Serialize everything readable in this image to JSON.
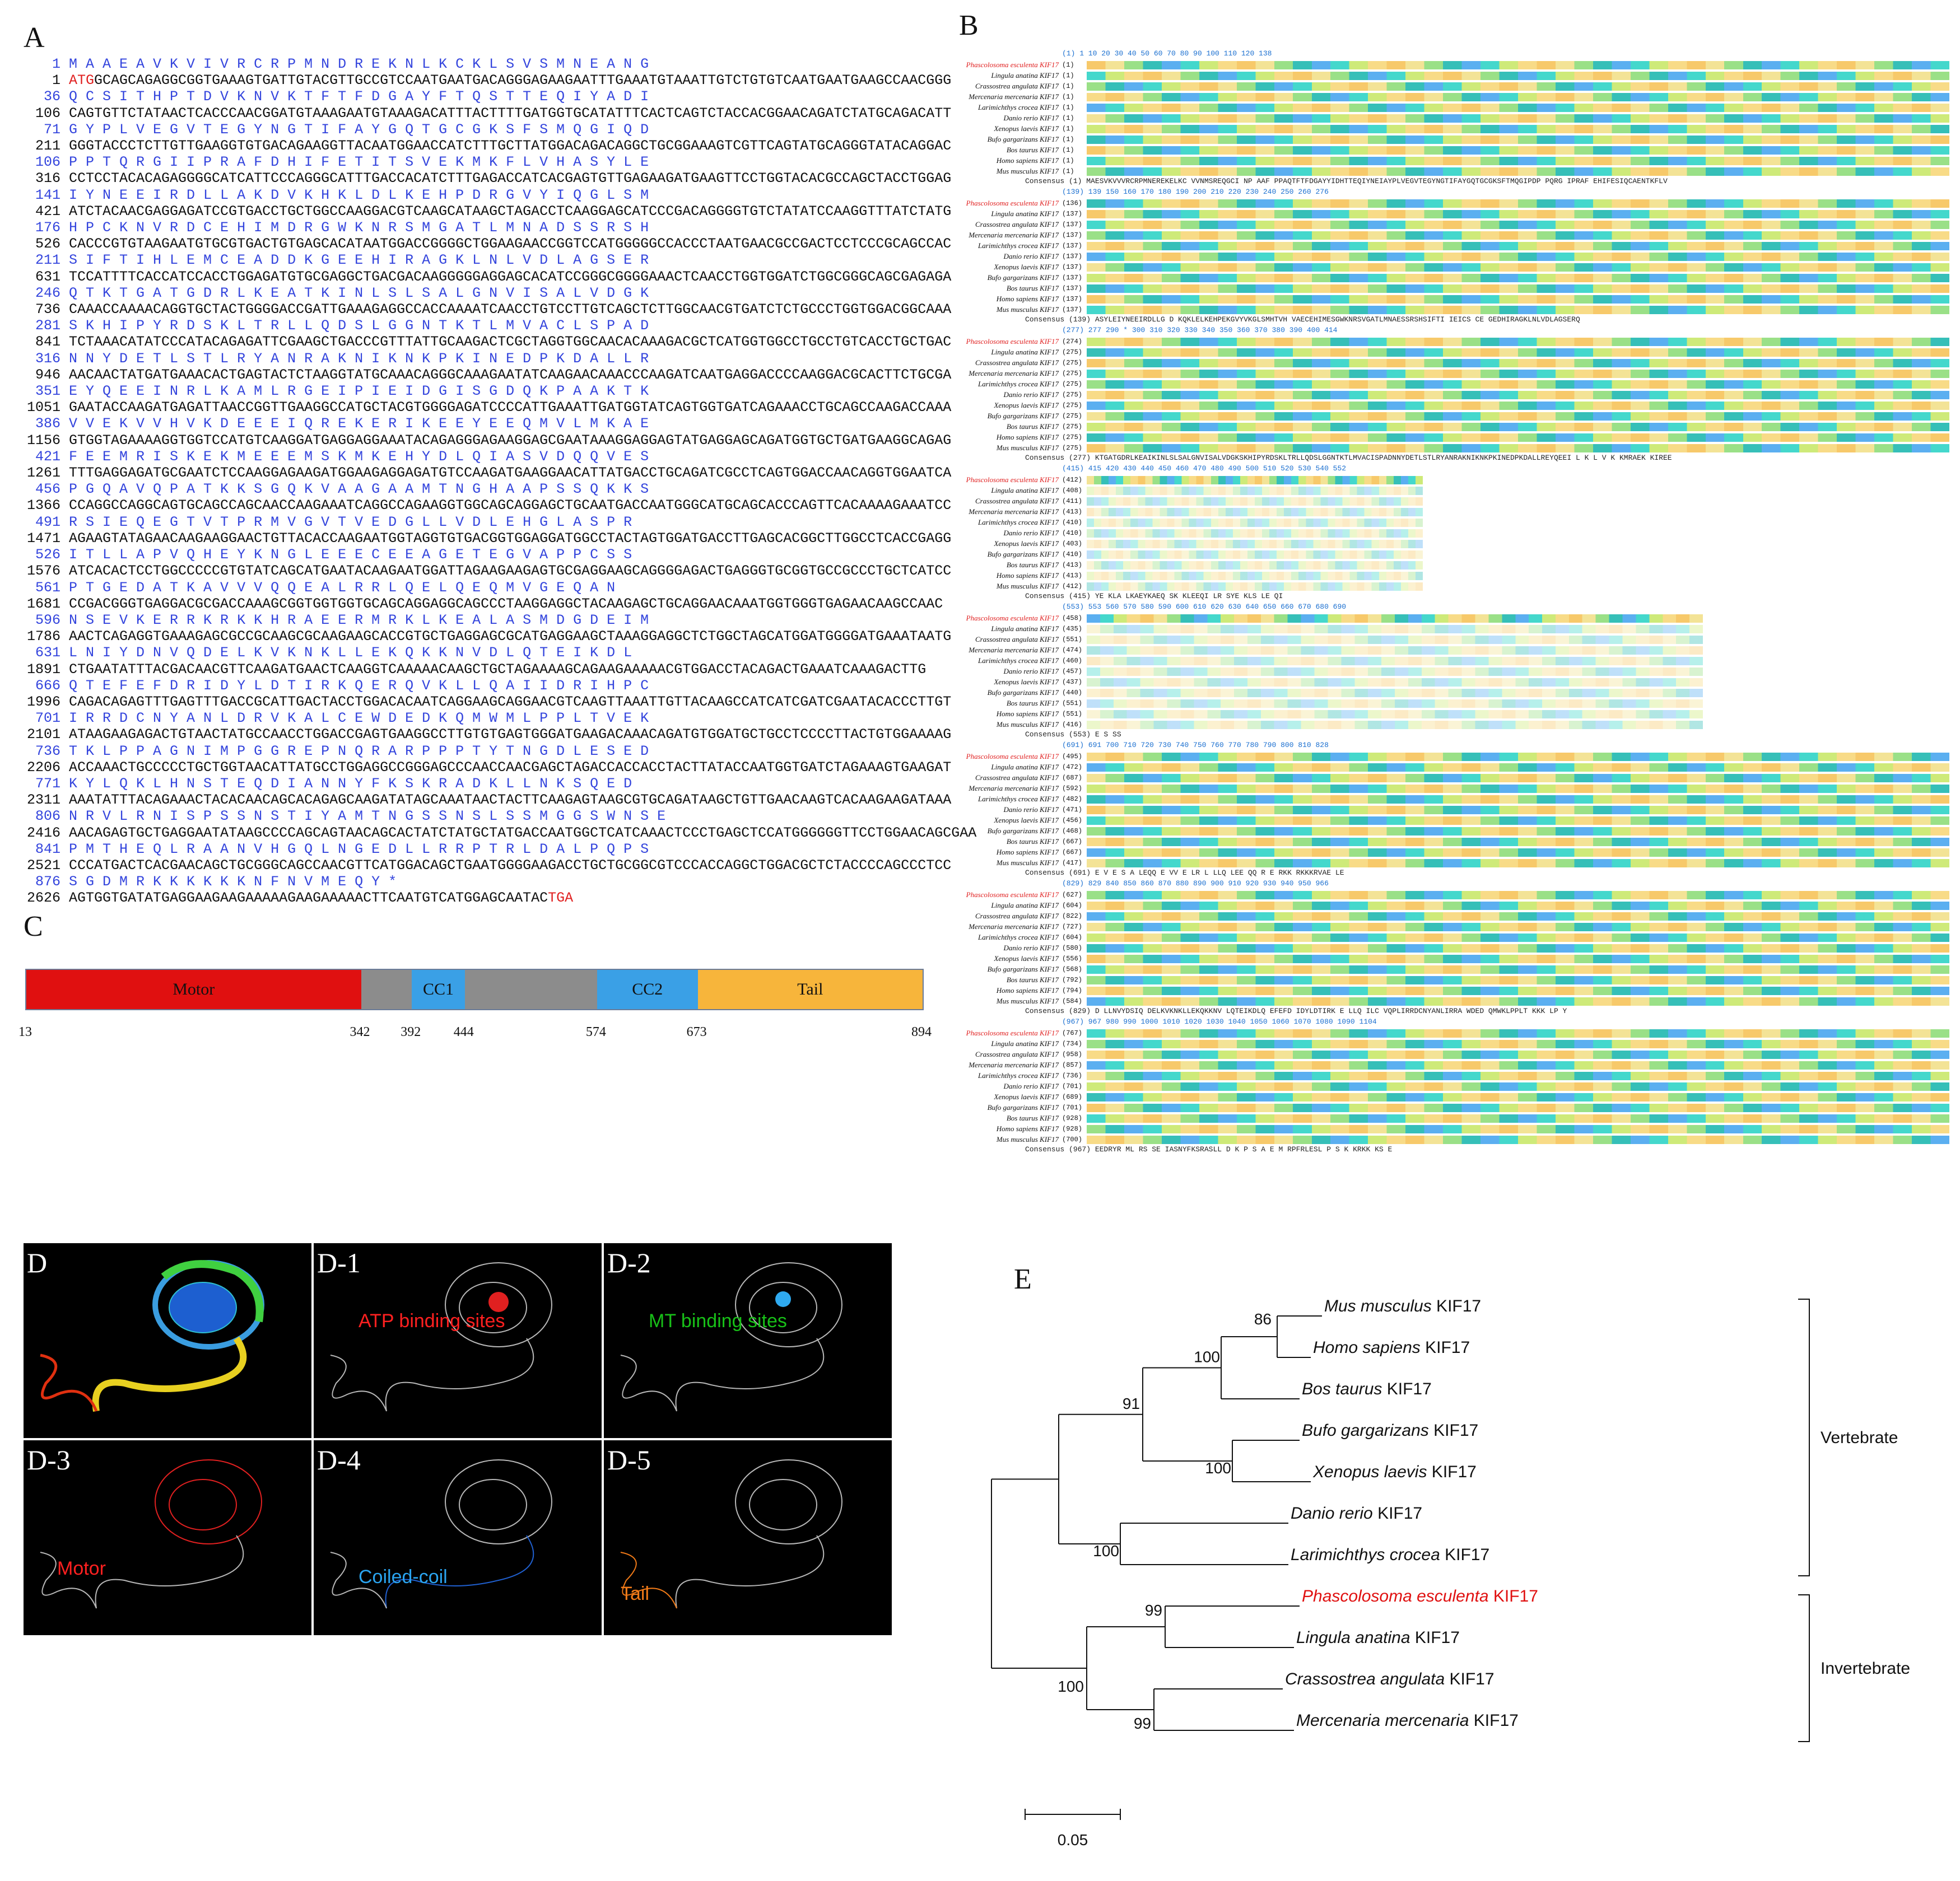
{
  "panels": {
    "A": "A",
    "B": "B",
    "C": "C",
    "D": "D",
    "E": "E"
  },
  "panel_a": {
    "rows": [
      {
        "idx": "1",
        "aa": "M A A E A V K V I V R C R P M N D R E K N L K C K L S V S M N E A N G",
        "kind": "aa"
      },
      {
        "idx": "1",
        "lead": "ATG",
        "nt": "GCAGCAGAGGCGGTGAAAGTGATTGTACGTTGCCGTCCAATGAATGACAGGGAGAAGAATTTGAAATGTAAATTGTCTGTGTCAATGAATGAAGCCAACGGG",
        "kind": "nt"
      },
      {
        "idx": "36",
        "aa": "Q C S I T H P T D V K N V K T F T F D G A Y F T Q S T T E Q I Y A D I",
        "kind": "aa"
      },
      {
        "idx": "106",
        "nt": "CAGTGTTCTATAACTCACCCAACGGATGTAAAGAATGTAAAGACATTTACTTTTGATGGTGCATATTTCACTCAGTCTACCACGGAACAGATCTATGCAGACATT",
        "kind": "nt"
      },
      {
        "idx": "71",
        "aa": "G Y P L V E G V T E G Y N G T I F A Y G Q T G C G K S F S M Q G I Q D",
        "kind": "aa"
      },
      {
        "idx": "211",
        "nt": "GGGTACCCTCTTGTTGAAGGTGTGACAGAAGGTTACAATGGAACCATCTTTGCTTATGGACAGACAGGCTGCGGAAAGTCGTTCAGTATGCAGGGTATACAGGAC",
        "kind": "nt"
      },
      {
        "idx": "106",
        "aa": "P P T Q R G I I P R A F D H I F E T I T S V E K M K F L V H A S Y L E",
        "kind": "aa"
      },
      {
        "idx": "316",
        "nt": "CCTCCTACACAGAGGGGCATCATTCCCAGGGCATTTGACCACATCTTTGAGACCATCACGAGTGTTGAGAAGATGAAGTTCCTGGTACACGCCAGCTACCTGGAG",
        "kind": "nt"
      },
      {
        "idx": "141",
        "aa": "I Y N E E I R D L L A K D V K H K L D L K E H P D R G V Y I Q G L S M",
        "kind": "aa"
      },
      {
        "idx": "421",
        "nt": "ATCTACAACGAGGAGATCCGTGACCTGCTGGCCAAGGACGTCAAGCATAAGCTAGACCTCAAGGAGCATCCCGACAGGGGTGTCTATATCCAAGGTTTATCTATG",
        "kind": "nt"
      },
      {
        "idx": "176",
        "aa": "H P C K N V R D C E H I M D R G W K N R S M G A T L M N A D S S R S H",
        "kind": "aa"
      },
      {
        "idx": "526",
        "nt": "CACCCGTGTAAGAATGTGCGTGACTGTGAGCACATAATGGACCGGGGCTGGAAGAACCGGTCCATGGGGGCCACCCTAATGAACGCCGACTCCTCCCGCAGCCAC",
        "kind": "nt"
      },
      {
        "idx": "211",
        "aa": "S I F T I H L E M C E A D D K G E E H I R A G K L N L V D L A G S E R",
        "kind": "aa"
      },
      {
        "idx": "631",
        "nt": "TCCATTTTCACCATCCACCTGGAGATGTGCGAGGCTGACGACAAGGGGGAGGAGCACATCCGGGCGGGGAAACTCAACCTGGTGGATCTGGCGGGCAGCGAGAGA",
        "kind": "nt"
      },
      {
        "idx": "246",
        "aa": "Q T K T G A T G D R L K E A T K I N L S L S A L G N V I S A L V D G K",
        "kind": "aa"
      },
      {
        "idx": "736",
        "nt": "CAAACCAAAACAGGTGCTACTGGGGACCGATTGAAAGAGGCCACCAAAATCAACCTGTCCTTGTCAGCTCTTGGCAACGTGATCTCTGCCCTGGTGGACGGCAAA",
        "kind": "nt"
      },
      {
        "idx": "281",
        "aa": "S K H I P Y R D S K L T R L L Q D S L G G N T K T L M V A C L S P A D",
        "kind": "aa"
      },
      {
        "idx": "841",
        "nt": "TCTAAACATATCCCATACAGAGATTCGAAGCTGACCCGTTTATTGCAAGACTCGCTAGGTGGCAACACAAAGACGCTCATGGTGGCCTGCCTGTCACCTGCTGAC",
        "kind": "nt"
      },
      {
        "idx": "316",
        "aa": "N N Y D E T L S T L R Y A N R A K N I K N K P K I N E D P K D A L L R",
        "kind": "aa"
      },
      {
        "idx": "946",
        "nt": "AACAACTATGATGAAACACTGAGTACTCTAAGGTATGCAAACAGGGCAAAGAATATCAAGAACAAACCCAAGATCAATGAGGACCCCAAGGACGCACTTCTGCGA",
        "kind": "nt"
      },
      {
        "idx": "351",
        "aa": "E Y Q E E I N R L K A M L R G E I P I E I D G I S G D Q K P A A K T K",
        "kind": "aa"
      },
      {
        "idx": "1051",
        "nt": "GAATACCAAGATGAGATTAACCGGTTGAAGGCCATGCTACGTGGGGAGATCCCCATTGAAATTGATGGTATCAGTGGTGATCAGAAACCTGCAGCCAAGACCAAA",
        "kind": "nt"
      },
      {
        "idx": "386",
        "aa": "V V E K V V H V K D E E E I Q R E K E R I K E E Y E E Q M V L M K A E",
        "kind": "aa"
      },
      {
        "idx": "1156",
        "nt": "GTGGTAGAAAAGGTGGTCCATGTCAAGGATGAGGAGGAAATACAGAGGGAGAAGGAGCGAATAAAGGAGGAGTATGAGGAGCAGATGGTGCTGATGAAGGCAGAG",
        "kind": "nt"
      },
      {
        "idx": "421",
        "aa": "F E E M R I S K E K M E E E M S K M K E H Y D L Q I A S V D Q Q V E S",
        "kind": "aa"
      },
      {
        "idx": "1261",
        "nt": "TTTGAGGAGATGCGAATCTCCAAGGAGAAGATGGAAGAGGAGATGTCCAAGATGAAGGAACATTATGACCTGCAGATCGCCTCAGTGGACCAACAGGTGGAATCA",
        "kind": "nt"
      },
      {
        "idx": "456",
        "aa": "P G Q A V Q P A T K K S G Q K V A A G A A M T N G H A A P S S Q K K S",
        "kind": "aa"
      },
      {
        "idx": "1366",
        "nt": "CCAGGCCAGGCAGTGCAGCCAGCAACCAAGAAATCAGGCCAGAAGGTGGCAGCAGGAGCTGCAATGACCAATGGGCATGCAGCACCCAGTTCACAAAAGAAATCC",
        "kind": "nt"
      },
      {
        "idx": "491",
        "aa": "R S I E Q E G T V T P R M V G V T V E D G L L V D L E H G L A S P R",
        "kind": "aa"
      },
      {
        "idx": "1471",
        "nt": "AGAAGTATAGAACAAGAAGGAACTGTTACACCAAGAATGGTAGGTGTGACGGTGGAGGATGGCCTACTAGTGGATGACCTTGAGCACGGCTTGGCCTCACCGAGG",
        "kind": "nt"
      },
      {
        "idx": "526",
        "aa": "I T L L A P V Q H E Y K N G L E E E C E E A G E T E G V A P P C S S",
        "kind": "aa"
      },
      {
        "idx": "1576",
        "nt": "ATCACACTCCTGGCCCCCGTGTATCAGCATGAATACAAGAATGGATTAGAAGAAGAGTGCGAGGAAGCAGGGGAGACTGAGGGTGCGGTGCCGCCCTGCTCATCC",
        "kind": "nt"
      },
      {
        "idx": "561",
        "aa": "P T G E D A T K A V V V Q Q E A L R R L Q E L Q E Q M V G E Q A N",
        "kind": "aa"
      },
      {
        "idx": "1681",
        "nt": "CCGACGGGTGAGGACGCGACCAAAGCGGTGGTGGTGCAGCAGGAGGCAGCCCTAAGGAGGCTACAAGAGCTGCAGGAACAAATGGTGGGTGAGAACAAGCCAAC",
        "kind": "nt"
      },
      {
        "idx": "596",
        "aa": "N S E V K E R R K R K K H R A E E R M R K L K E A L A S M D G D E I M",
        "kind": "aa"
      },
      {
        "idx": "1786",
        "nt": "AACTCAGAGGTGAAAGAGCGCCGCAAGCGCAAGAAGCACCGTGCTGAGGAGCGCATGAGGAAGCTAAAGGAGGCTCTGGCTAGCATGGATGGGGATGAAATAATG",
        "kind": "nt"
      },
      {
        "idx": "631",
        "aa": "L N I Y D N V Q D E L K V K N K L L E K Q K K N V D L Q T E I K D L",
        "kind": "aa"
      },
      {
        "idx": "1891",
        "nt": "CTGAATATTTACGACAACGTTCAAGATGAACTCAAGGTCAAAAACAAGCTGCTAGAAAAGCAGAAGAAAAACGTGGACCTACAGACTGAAATCAAAGACTTG",
        "kind": "nt"
      },
      {
        "idx": "666",
        "aa": "Q T E F E F D R I D Y L D T I R K Q E R Q V K L L Q A I I D R I H P C",
        "kind": "aa"
      },
      {
        "idx": "1996",
        "nt": "CAGACAGAGTTTGAGTTTGACCGCATTGACTACCTGGACACAATCAGGAAGCAGGAACGTCAAGTTAAATTGTTACAAGCCATCATCGATCGAATACACCCTTGT",
        "kind": "nt"
      },
      {
        "idx": "701",
        "aa": "I R R D C N Y A N L D R V K A L C E W D E D K Q M W M L P P L T V E K",
        "kind": "aa"
      },
      {
        "idx": "2101",
        "nt": "ATAAGAAGAGACTGTAACTATGCCAACCTGGACCGAGTGAAGGCCTTGTGTGAGTGGGATGAAGACAAACAGATGTGGATGCTGCCTCCCCTTACTGTGGAAAAG",
        "kind": "nt"
      },
      {
        "idx": "736",
        "aa": "T K L P P A G N I M P G G R E P N Q R A R P P P T Y T N G D L E S E D",
        "kind": "aa"
      },
      {
        "idx": "2206",
        "nt": "ACCAAACTGCCCCCTGCTGGTAACATTATGCCTGGAGGCCGGGAGCCCAACCAACGAGCTAGACCACCACCTACTTATACCAATGGTGATCTAGAAAGTGAAGAT",
        "kind": "nt"
      },
      {
        "idx": "771",
        "aa": "K Y L Q K L H N S T E Q D I A N N Y F K S K R A D K L L N K S Q E D",
        "kind": "aa"
      },
      {
        "idx": "2311",
        "nt": "AAATATTTACAGAAACTACACAACAGCACAGAGCAAGATATAGCAAATAACTACTTCAAGAGTAAGCGTGCAGATAAGCTGTTGAACAAGTCACAAGAAGATAAA",
        "kind": "nt"
      },
      {
        "idx": "806",
        "aa": "N R V L R N I S P S S N S T I Y A M T N G S S N S L S S M G G S W N S E",
        "kind": "aa"
      },
      {
        "idx": "2416",
        "nt": "AACAGAGTGCTGAGGAATATAAGCCCCAGCAGTAACAGCACTATCTATGCTATGACCAATGGCTCATCAAACTCCCTGAGCTCCATGGGGGGTTCCTGGAACAGCGAA",
        "kind": "nt"
      },
      {
        "idx": "841",
        "aa": "P M T H E Q L R A A N V H G Q L N G E D L L R R P T R L D A L P Q P S",
        "kind": "aa"
      },
      {
        "idx": "2521",
        "nt": "CCCATGACTCACGAACAGCTGCGGGCAGCCAACGTTCATGGACAGCTGAATGGGGAAGACCTGCTGCGGCGTCCCACCAGGCTGGACGCTCTACCCCAGCCCTCC",
        "kind": "nt"
      },
      {
        "idx": "876",
        "aa": "S G D M R K K K K K K N F N V M E Q Y *",
        "kind": "aa"
      },
      {
        "idx": "2626",
        "nt": "AGTGGTGATATGAGGAAGAAGAAAAAGAAGAAAAACTTCAATGTCATGGAGCAATAC",
        "tail": "TGA",
        "kind": "nt"
      }
    ]
  },
  "panel_b": {
    "species": [
      "Phascolosoma esculenta KIF17",
      "Lingula anatina KIF17",
      "Crassostrea angulata KIF17",
      "Mercenaria mercenaria KIF17",
      "Larimichthys crocea KIF17",
      "Danio rerio KIF17",
      "Xenopus laevis KIF17",
      "Bufo gargarizans KIF17",
      "Bos taurus KIF17",
      "Homo sapiens KIF17",
      "Mus musculus KIF17"
    ],
    "consensus_label": "Consensus",
    "blocks": [
      {
        "pos": "(1)  1      10      20      30      40      50      60      70      80      90     100     110     120     138",
        "starts": [
          "(1)",
          "(1)",
          "(1)",
          "(1)",
          "(1)",
          "(1)",
          "(1)",
          "(1)",
          "(1)",
          "(1)",
          "(1)"
        ],
        "cons": "(1)  MAESVKVVVRCRPMNEREKELKC VVNMSREQGCI NP AAF PPAQTFTFDGAYYIDHTTEQIYNEIAYPLVEGVTEGYNGTIFAYGQTGCGKSFTMQGIPDP PQRG IPRAF EHIFESIQCAENTKFLV"
      },
      {
        "pos": "(139)  139    150     160     170     180     190     200     210     220     230     240     250     260     276",
        "starts": [
          "(136)",
          "(137)",
          "(137)",
          "(137)",
          "(137)",
          "(137)",
          "(137)",
          "(137)",
          "(137)",
          "(137)",
          "(137)"
        ],
        "cons": "(139) ASYLEIYNEEIRDLLG D KQKLELKEHPEKGVYVKGLSMHTVH VAECEHIMESGWKNRSVGATLMNAESSRSHSIFTI IEICS CE GEDHIRAGKLNLVDLAGSERQ"
      },
      {
        "pos": "(277)  277  290 *  300     310     320     330     340     350     360     370     380     390     400     414",
        "starts": [
          "(274)",
          "(275)",
          "(275)",
          "(275)",
          "(275)",
          "(275)",
          "(275)",
          "(275)",
          "(275)",
          "(275)",
          "(275)"
        ],
        "cons": "(277) KTGATGDRLKEAIKINLSLSALGNVISALVDGKSKHIPYRDSKLTRLLQDSLGGNTKTLMVACISPADNNYDETLSTLRYANRAKNIKNKPKINEDPKDALLREYQEEI L K L   V  K  KMRAEK KIREE"
      },
      {
        "pos": "(415)  415  420     430     440     450     460     470     480     490     500     510     520     530     540     552",
        "starts": [
          "(412)",
          "(408)",
          "(411)",
          "(413)",
          "(410)",
          "(410)",
          "(403)",
          "(410)",
          "(413)",
          "(413)",
          "(412)"
        ],
        "cons": "(415) YE KLA LKAEYKAEQ SK KLEEQI LR SYE KLS LE QI"
      },
      {
        "pos": "(553)  553  560     570     580     590     600     610     620     630     640     650     660     670     680     690",
        "starts": [
          "(458)",
          "(435)",
          "(551)",
          "(474)",
          "(460)",
          "(457)",
          "(437)",
          "(440)",
          "(551)",
          "(551)",
          "(416)"
        ],
        "cons": "(553)                                                                                     E   S      SS"
      },
      {
        "pos": "(691)  691  700     710     720     730     740     750     760     770     780     790     800     810     828",
        "starts": [
          "(495)",
          "(472)",
          "(687)",
          "(592)",
          "(482)",
          "(471)",
          "(456)",
          "(468)",
          "(667)",
          "(667)",
          "(417)"
        ],
        "cons": "(691) E       V  E  S    A                      LEQQ E  VV  E  LR L  LLQ  LEE  QQ  R  E    RKK RKKKRVAE   LE"
      },
      {
        "pos": "(829)  829  840     850     860     870     880     890     900     910     920     930     940     950     966",
        "starts": [
          "(627)",
          "(604)",
          "(822)",
          "(727)",
          "(604)",
          "(580)",
          "(556)",
          "(568)",
          "(792)",
          "(794)",
          "(584)"
        ],
        "cons": "(829) D LLNVYDSIQ DELKVKNKLLEKQKKNV LQTEIKDLQ EFEFD IDYLDTIRK E LLQ ILC VQPLIRRDCNYANLIRRA WDED QMWKLPPLT KKK LP Y"
      },
      {
        "pos": "(967)  967  980     990     1000    1010    1020    1030    1040    1050    1060    1070    1080    1090    1104",
        "starts": [
          "(767)",
          "(734)",
          "(958)",
          "(857)",
          "(736)",
          "(701)",
          "(689)",
          "(701)",
          "(928)",
          "(928)",
          "(700)"
        ],
        "cons": "(967) EEDRYR ML RS SE IASNYFKSRASLL D K       P S                    A     E M  RPFRLESL  P S  K KRKK KS    E"
      }
    ]
  },
  "panel_c": {
    "segments": [
      {
        "label": "Motor",
        "start": 13,
        "end": 342,
        "color": "#e01010"
      },
      {
        "label": "",
        "start": 342,
        "end": 392,
        "color": "#8c8c8c"
      },
      {
        "label": "CC1",
        "start": 392,
        "end": 444,
        "color": "#3aa0e6"
      },
      {
        "label": "",
        "start": 444,
        "end": 574,
        "color": "#8c8c8c"
      },
      {
        "label": "CC2",
        "start": 574,
        "end": 673,
        "color": "#3aa0e6"
      },
      {
        "label": "Tail",
        "start": 673,
        "end": 894,
        "color": "#f7b53b"
      }
    ],
    "ticks": [
      "13",
      "342",
      "392",
      "444",
      "574",
      "673",
      "894"
    ]
  },
  "panel_d": {
    "tiles": [
      {
        "label": "D",
        "annotation": "",
        "ann_color": ""
      },
      {
        "label": "D-1",
        "annotation": "ATP binding sites",
        "ann_color": "#ff2020"
      },
      {
        "label": "D-2",
        "annotation": "MT binding sites",
        "ann_color": "#18c018"
      },
      {
        "label": "D-3",
        "annotation": "Motor",
        "ann_color": "#ff2020"
      },
      {
        "label": "D-4",
        "annotation": "Coiled-coil",
        "ann_color": "#2aa4f0"
      },
      {
        "label": "D-5",
        "annotation": "Tail",
        "ann_color": "#f07a18"
      }
    ]
  },
  "panel_e": {
    "taxa": [
      {
        "genus": "Mus musculus",
        "gene": "KIF17",
        "highlight": false
      },
      {
        "genus": "Homo sapiens",
        "gene": "KIF17",
        "highlight": false
      },
      {
        "genus": "Bos taurus",
        "gene": "KIF17",
        "highlight": false
      },
      {
        "genus": "Bufo gargarizans",
        "gene": "KIF17",
        "highlight": false
      },
      {
        "genus": "Xenopus laevis",
        "gene": "KIF17",
        "highlight": false
      },
      {
        "genus": "Danio rerio",
        "gene": "KIF17",
        "highlight": false
      },
      {
        "genus": "Larimichthys crocea",
        "gene": "KIF17",
        "highlight": false
      },
      {
        "genus": "Phascolosoma esculenta",
        "gene": "KIF17",
        "highlight": true
      },
      {
        "genus": "Lingula anatina",
        "gene": "KIF17",
        "highlight": false
      },
      {
        "genus": "Crassostrea angulata",
        "gene": "KIF17",
        "highlight": false
      },
      {
        "genus": "Mercenaria mercenaria",
        "gene": "KIF17",
        "highlight": false
      }
    ],
    "bootstraps": [
      "86",
      "100",
      "91",
      "100",
      "100",
      "99",
      "100",
      "99"
    ],
    "groups": [
      "Vertebrate",
      "Invertebrate"
    ],
    "scale_label": "0.05",
    "highlight_color": "#e01010"
  }
}
